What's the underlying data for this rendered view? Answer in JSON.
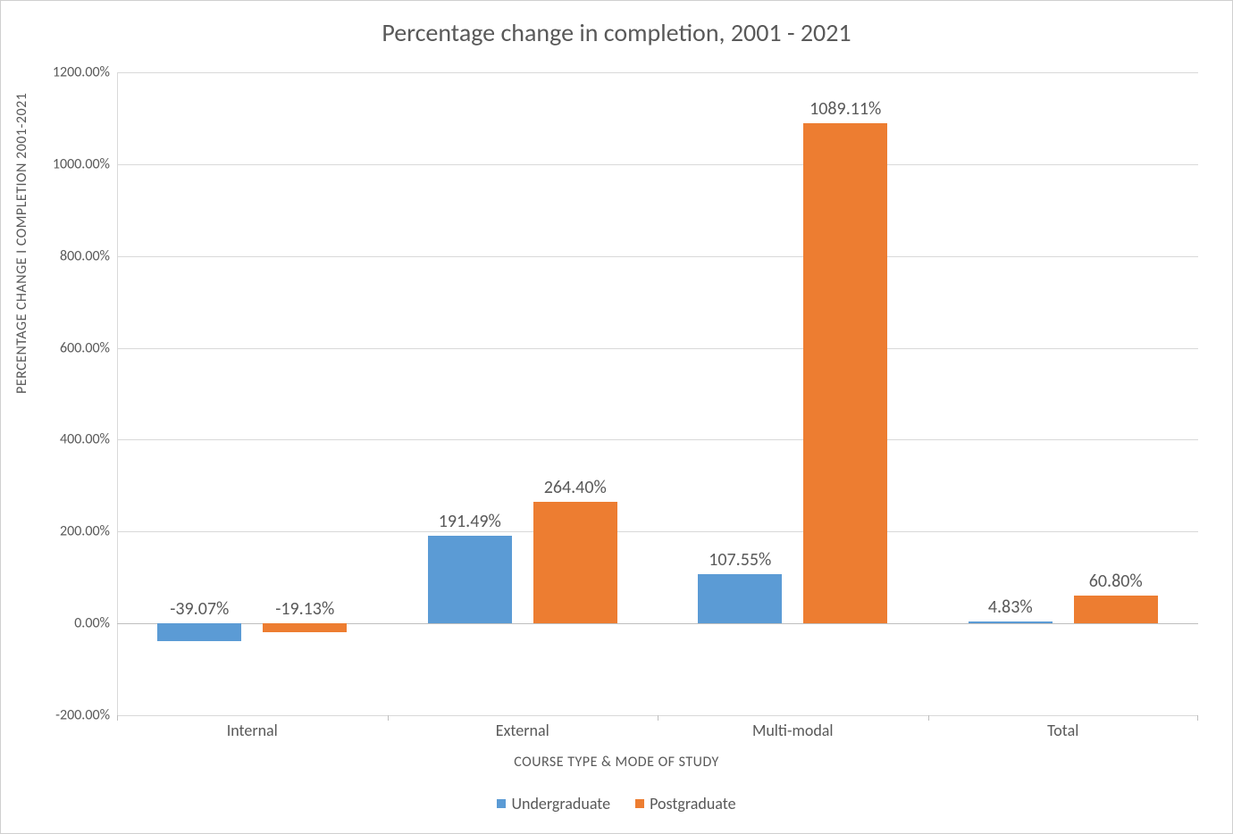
{
  "chart": {
    "type": "bar",
    "title": "Percentage change in completion, 2001 - 2021",
    "title_fontsize": 28,
    "title_color": "#595959",
    "x_axis_label": "COURSE TYPE & MODE OF STUDY",
    "y_axis_label": "PERCENTAGE CHANGE I COMPLETION 2001-2021",
    "axis_label_fontsize": 16,
    "axis_label_color": "#595959",
    "tick_label_fontsize": 16,
    "tick_label_color": "#595959",
    "data_label_fontsize": 20,
    "data_label_color": "#595959",
    "background_color": "#ffffff",
    "grid_color": "#d9d9d9",
    "border_color": "#d0d0d0",
    "categories": [
      "Internal",
      "External",
      "Multi-modal",
      "Total"
    ],
    "series": [
      {
        "name": "Undergraduate",
        "color": "#5b9bd5",
        "values": [
          -39.07,
          191.49,
          107.55,
          4.83
        ],
        "labels": [
          "-39.07%",
          "191.49%",
          "107.55%",
          "4.83%"
        ]
      },
      {
        "name": "Postgraduate",
        "color": "#ed7d31",
        "values": [
          -19.13,
          264.4,
          1089.11,
          60.8
        ],
        "labels": [
          "-19.13%",
          "264.40%",
          "1089.11%",
          "60.80%"
        ]
      }
    ],
    "y_min": -200,
    "y_max": 1200,
    "y_step": 200,
    "y_tick_labels": [
      "-200.00%",
      "0.00%",
      "200.00%",
      "400.00%",
      "600.00%",
      "800.00%",
      "1000.00%",
      "1200.00%"
    ],
    "bar_group_gap_ratio": 0.15,
    "bar_within_gap_ratio": 0.08,
    "legend_position": "bottom-center"
  }
}
